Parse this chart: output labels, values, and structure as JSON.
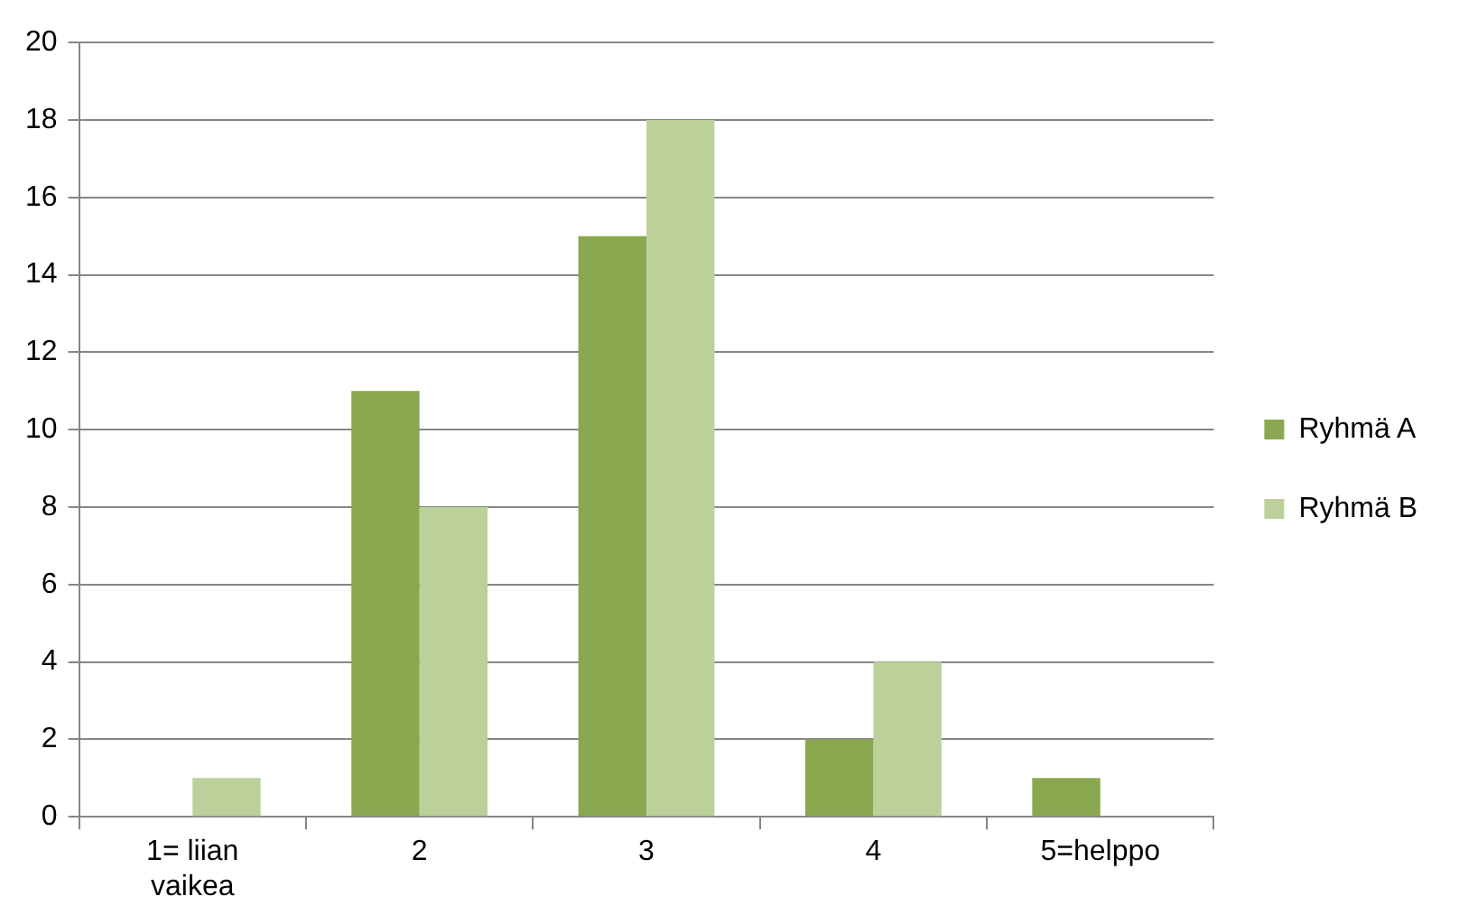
{
  "chart_data": {
    "type": "bar",
    "categories": [
      "1= liian vaikea",
      "2",
      "3",
      "4",
      "5=helppo"
    ],
    "series": [
      {
        "name": "Ryhmä A",
        "color": "#8aa84f",
        "values": [
          0,
          11,
          15,
          2,
          1
        ]
      },
      {
        "name": "Ryhmä B",
        "color": "#bcd19a",
        "values": [
          1,
          8,
          18,
          4,
          0
        ]
      }
    ],
    "ylim": [
      0,
      20
    ],
    "yticks": [
      0,
      2,
      4,
      6,
      8,
      10,
      12,
      14,
      16,
      18,
      20
    ],
    "grid": "y",
    "legend": "right"
  }
}
